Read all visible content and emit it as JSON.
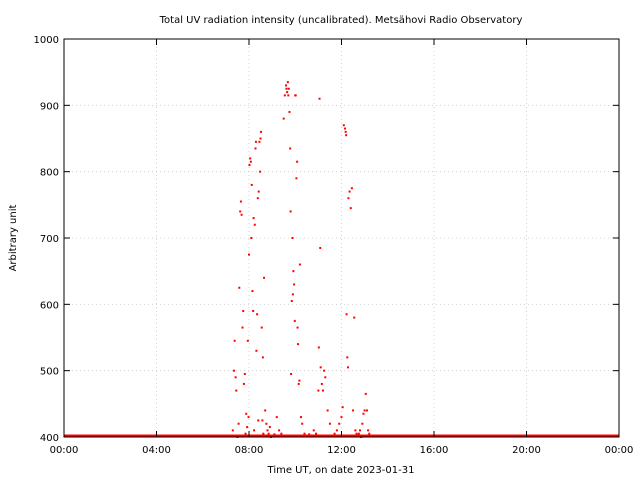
{
  "chart_data": {
    "type": "scatter",
    "title": "Total UV radiation intensity (uncalibrated). Metsähovi Radio Observatory",
    "xlabel": "Time UT, on date 2023-01-31",
    "ylabel": "Arbitrary unit",
    "xlim_hours": [
      0,
      24
    ],
    "ylim": [
      400,
      1000
    ],
    "x_tick_labels": [
      "00:00",
      "04:00",
      "08:00",
      "12:00",
      "16:00",
      "20:00",
      "00:00"
    ],
    "x_tick_hours": [
      0,
      4,
      8,
      12,
      16,
      20,
      24
    ],
    "y_ticks": [
      400,
      500,
      600,
      700,
      800,
      900,
      1000
    ],
    "grid": true,
    "marker_color": "#ff0000",
    "baseline": {
      "value": 400,
      "from_hour": 0.0,
      "to_hour": 24.0
    },
    "points_x_hours": [
      7.3,
      7.35,
      7.38,
      7.42,
      7.45,
      7.5,
      7.55,
      7.58,
      7.62,
      7.65,
      7.68,
      7.72,
      7.75,
      7.78,
      7.82,
      7.85,
      7.88,
      7.92,
      7.95,
      7.98,
      8.0,
      8.02,
      8.05,
      8.08,
      8.1,
      8.12,
      8.15,
      8.18,
      8.2,
      8.22,
      8.25,
      8.28,
      8.3,
      8.32,
      8.35,
      8.38,
      8.4,
      8.42,
      8.45,
      8.48,
      8.5,
      8.52,
      8.55,
      8.58,
      8.6,
      8.62,
      8.65,
      8.7,
      8.75,
      8.8,
      8.85,
      8.9,
      8.95,
      9.0,
      9.1,
      9.2,
      9.3,
      9.4,
      9.5,
      9.55,
      9.6,
      9.62,
      9.65,
      9.68,
      9.7,
      9.72,
      9.75,
      9.78,
      9.8,
      9.82,
      9.85,
      9.88,
      9.9,
      9.92,
      9.95,
      9.98,
      10.0,
      10.02,
      10.05,
      10.08,
      10.1,
      10.12,
      10.15,
      10.18,
      10.2,
      10.25,
      10.3,
      10.4,
      10.5,
      10.6,
      10.7,
      10.8,
      10.9,
      11.0,
      11.02,
      11.05,
      11.08,
      11.1,
      11.15,
      11.2,
      11.25,
      11.3,
      11.4,
      11.5,
      11.6,
      11.7,
      11.8,
      11.9,
      12.0,
      12.05,
      12.1,
      12.15,
      12.18,
      12.2,
      12.22,
      12.25,
      12.28,
      12.3,
      12.35,
      12.4,
      12.45,
      12.5,
      12.55,
      12.6,
      12.65,
      12.7,
      12.75,
      12.8,
      12.85,
      12.9,
      12.95,
      13.0,
      13.05,
      13.1,
      13.15,
      13.2
    ],
    "points_y": [
      410,
      500,
      545,
      490,
      470,
      400,
      420,
      625,
      740,
      755,
      735,
      565,
      590,
      480,
      495,
      405,
      435,
      415,
      545,
      430,
      675,
      810,
      820,
      815,
      700,
      780,
      620,
      590,
      730,
      410,
      720,
      835,
      845,
      530,
      585,
      760,
      425,
      770,
      845,
      800,
      850,
      860,
      565,
      425,
      520,
      405,
      640,
      440,
      420,
      410,
      405,
      415,
      400,
      402,
      404,
      430,
      410,
      405,
      880,
      915,
      930,
      925,
      920,
      935,
      915,
      925,
      890,
      835,
      740,
      495,
      605,
      700,
      615,
      650,
      630,
      575,
      915,
      915,
      790,
      815,
      565,
      540,
      480,
      485,
      660,
      430,
      420,
      405,
      402,
      404,
      402,
      410,
      405,
      470,
      535,
      910,
      685,
      505,
      480,
      470,
      500,
      490,
      440,
      420,
      402,
      405,
      410,
      420,
      430,
      445,
      870,
      865,
      860,
      855,
      585,
      520,
      505,
      760,
      770,
      745,
      775,
      440,
      580,
      410,
      405,
      402,
      405,
      410,
      400,
      420,
      435,
      440,
      465,
      440,
      410,
      405
    ]
  }
}
